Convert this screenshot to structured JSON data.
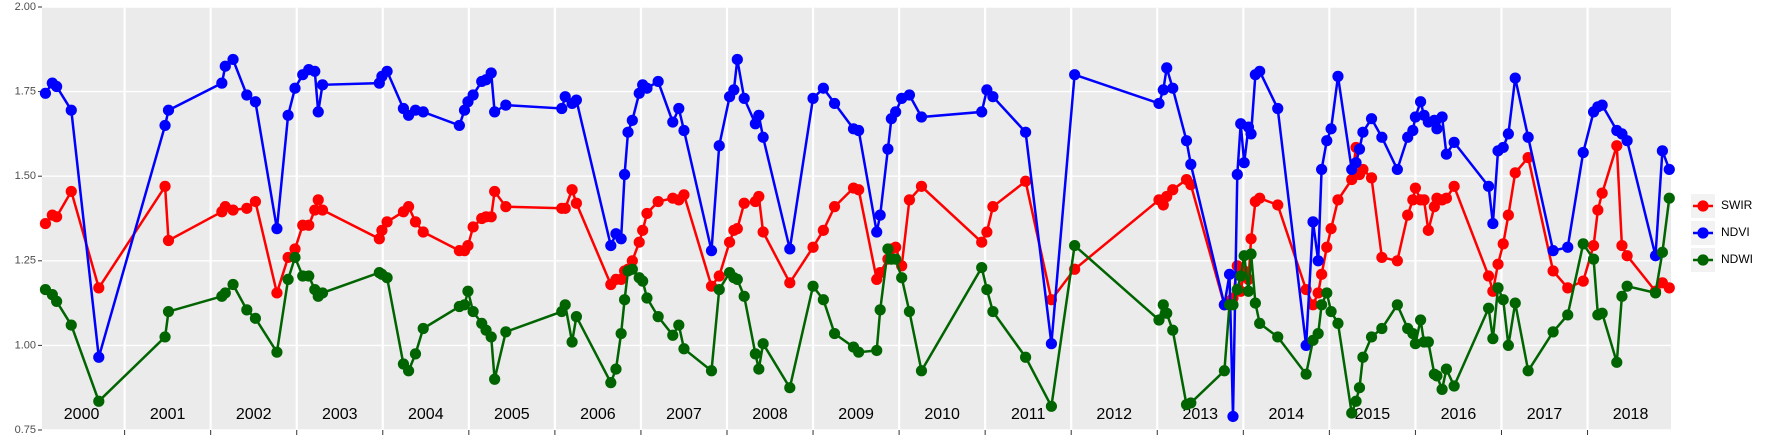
{
  "chart_data": {
    "type": "line",
    "x": [
      2000.08,
      2000.16,
      2000.21,
      2000.38,
      2000.7,
      2001.47,
      2001.51,
      2002.13,
      2002.17,
      2002.26,
      2002.42,
      2002.52,
      2002.77,
      2002.9,
      2002.98,
      2003.07,
      2003.14,
      2003.21,
      2003.25,
      2003.3,
      2003.96,
      2003.99,
      2004.05,
      2004.24,
      2004.3,
      2004.38,
      2004.47,
      2004.89,
      2004.95,
      2004.99,
      2005.05,
      2005.15,
      2005.2,
      2005.26,
      2005.3,
      2005.43,
      2006.08,
      2006.12,
      2006.2,
      2006.25,
      2006.65,
      2006.71,
      2006.77,
      2006.81,
      2006.85,
      2006.9,
      2006.98,
      2007.02,
      2007.07,
      2007.2,
      2007.37,
      2007.44,
      2007.5,
      2007.82,
      2007.91,
      2008.03,
      2008.08,
      2008.12,
      2008.2,
      2008.33,
      2008.37,
      2008.42,
      2008.73,
      2009.0,
      2009.12,
      2009.25,
      2009.47,
      2009.53,
      2009.74,
      2009.78,
      2009.87,
      2009.91,
      2009.96,
      2010.03,
      2010.12,
      2010.26,
      2010.96,
      2011.02,
      2011.09,
      2011.47,
      2011.77,
      2012.04,
      2013.02,
      2013.07,
      2013.11,
      2013.18,
      2013.34,
      2013.39,
      2013.78,
      2013.84,
      2013.88,
      2013.93,
      2013.97,
      2014.01,
      2014.06,
      2014.09,
      2014.14,
      2014.19,
      2014.4,
      2014.73,
      2014.81,
      2014.87,
      2014.91,
      2014.97,
      2015.02,
      2015.1,
      2015.26,
      2015.31,
      2015.35,
      2015.39,
      2015.49,
      2015.61,
      2015.79,
      2015.91,
      2015.97,
      2016.0,
      2016.06,
      2016.1,
      2016.15,
      2016.22,
      2016.25,
      2016.31,
      2016.36,
      2016.45,
      2016.85,
      2016.9,
      2016.96,
      2017.02,
      2017.08,
      2017.16,
      2017.31,
      2017.6,
      2017.77,
      2017.95,
      2018.07,
      2018.12,
      2018.17,
      2018.34,
      2018.4,
      2018.46,
      2018.79,
      2018.87,
      2018.95
    ],
    "series": [
      {
        "name": "SWIR",
        "color": "#ff0000",
        "values": [
          1.36,
          1.385,
          1.38,
          1.455,
          1.17,
          1.47,
          1.31,
          1.395,
          1.41,
          1.4,
          1.405,
          1.425,
          1.155,
          1.26,
          1.285,
          1.355,
          1.355,
          1.4,
          1.43,
          1.4,
          1.315,
          1.34,
          1.365,
          1.395,
          1.41,
          1.365,
          1.335,
          1.28,
          1.28,
          1.295,
          1.35,
          1.375,
          1.38,
          1.38,
          1.455,
          1.41,
          1.405,
          1.405,
          1.46,
          1.42,
          1.18,
          1.195,
          1.195,
          1.22,
          1.225,
          1.25,
          1.305,
          1.34,
          1.39,
          1.425,
          1.435,
          1.43,
          1.445,
          1.175,
          1.205,
          1.305,
          1.34,
          1.345,
          1.42,
          1.425,
          1.44,
          1.335,
          1.185,
          1.29,
          1.34,
          1.41,
          1.465,
          1.46,
          1.195,
          1.215,
          1.255,
          1.285,
          1.29,
          1.235,
          1.43,
          1.47,
          1.305,
          1.335,
          1.41,
          1.485,
          1.135,
          1.225,
          1.43,
          1.415,
          1.44,
          1.46,
          1.49,
          1.475,
          1.12,
          1.13,
          1.14,
          1.235,
          1.16,
          1.22,
          1.195,
          1.315,
          1.425,
          1.435,
          1.415,
          1.165,
          1.12,
          1.155,
          1.21,
          1.29,
          1.345,
          1.43,
          1.49,
          1.585,
          1.505,
          1.52,
          1.495,
          1.26,
          1.25,
          1.385,
          1.43,
          1.465,
          1.43,
          1.43,
          1.34,
          1.41,
          1.435,
          1.43,
          1.435,
          1.47,
          1.205,
          1.16,
          1.24,
          1.3,
          1.385,
          1.51,
          1.555,
          1.22,
          1.17,
          1.19,
          1.295,
          1.4,
          1.45,
          1.59,
          1.295,
          1.265,
          1.16,
          1.185,
          1.17
        ]
      },
      {
        "name": "NDVI",
        "color": "#0000ff",
        "values": [
          1.745,
          1.775,
          1.765,
          1.695,
          0.965,
          1.65,
          1.695,
          1.775,
          1.825,
          1.845,
          1.74,
          1.72,
          1.345,
          1.68,
          1.76,
          1.8,
          1.815,
          1.81,
          1.69,
          1.77,
          1.775,
          1.795,
          1.81,
          1.7,
          1.68,
          1.695,
          1.69,
          1.65,
          1.695,
          1.72,
          1.74,
          1.78,
          1.785,
          1.805,
          1.69,
          1.71,
          1.7,
          1.735,
          1.715,
          1.725,
          1.295,
          1.33,
          1.315,
          1.505,
          1.63,
          1.665,
          1.745,
          1.77,
          1.76,
          1.78,
          1.66,
          1.7,
          1.635,
          1.28,
          1.59,
          1.735,
          1.755,
          1.845,
          1.73,
          1.655,
          1.68,
          1.615,
          1.285,
          1.73,
          1.76,
          1.715,
          1.64,
          1.635,
          1.335,
          1.385,
          1.58,
          1.67,
          1.69,
          1.73,
          1.74,
          1.675,
          1.69,
          1.755,
          1.735,
          1.63,
          1.005,
          1.8,
          1.715,
          1.755,
          1.82,
          1.76,
          1.605,
          1.535,
          1.12,
          1.21,
          0.79,
          1.505,
          1.655,
          1.54,
          1.645,
          1.625,
          1.8,
          1.81,
          1.7,
          1.0,
          1.365,
          1.25,
          1.52,
          1.605,
          1.64,
          1.795,
          1.52,
          1.54,
          1.58,
          1.63,
          1.67,
          1.615,
          1.52,
          1.615,
          1.635,
          1.675,
          1.72,
          1.68,
          1.66,
          1.665,
          1.64,
          1.675,
          1.565,
          1.6,
          1.47,
          1.36,
          1.575,
          1.585,
          1.625,
          1.79,
          1.615,
          1.28,
          1.29,
          1.57,
          1.69,
          1.705,
          1.71,
          1.635,
          1.625,
          1.605,
          1.265,
          1.575,
          1.52
        ]
      },
      {
        "name": "NDWI",
        "color": "#006400",
        "values": [
          1.165,
          1.15,
          1.13,
          1.06,
          0.835,
          1.025,
          1.1,
          1.145,
          1.155,
          1.18,
          1.105,
          1.08,
          0.98,
          1.195,
          1.26,
          1.205,
          1.205,
          1.165,
          1.145,
          1.155,
          1.215,
          1.21,
          1.2,
          0.945,
          0.925,
          0.975,
          1.05,
          1.115,
          1.12,
          1.16,
          1.1,
          1.065,
          1.045,
          1.025,
          0.9,
          1.04,
          1.1,
          1.12,
          1.01,
          1.085,
          0.89,
          0.93,
          1.035,
          1.135,
          1.22,
          1.225,
          1.2,
          1.19,
          1.14,
          1.085,
          1.03,
          1.06,
          0.99,
          0.925,
          1.165,
          1.215,
          1.2,
          1.195,
          1.145,
          0.975,
          0.93,
          1.005,
          0.875,
          1.175,
          1.135,
          1.035,
          0.995,
          0.98,
          0.985,
          1.105,
          1.285,
          1.255,
          1.255,
          1.2,
          1.1,
          0.925,
          1.23,
          1.165,
          1.1,
          0.965,
          0.82,
          1.295,
          1.075,
          1.12,
          1.095,
          1.045,
          0.825,
          0.83,
          0.925,
          1.12,
          1.12,
          1.165,
          1.205,
          1.265,
          1.16,
          1.27,
          1.125,
          1.065,
          1.025,
          0.915,
          1.015,
          1.035,
          1.12,
          1.155,
          1.1,
          1.065,
          0.8,
          0.835,
          0.875,
          0.965,
          1.025,
          1.05,
          1.12,
          1.05,
          1.035,
          1.005,
          1.075,
          1.01,
          1.01,
          0.915,
          0.91,
          0.87,
          0.93,
          0.88,
          1.11,
          1.02,
          1.17,
          1.135,
          1.0,
          1.125,
          0.925,
          1.04,
          1.09,
          1.3,
          1.255,
          1.09,
          1.095,
          0.95,
          1.145,
          1.175,
          1.155,
          1.275,
          1.435
        ]
      }
    ],
    "xlim": [
      2000.04,
      2018.97
    ],
    "xticks": [
      2001,
      2002,
      2003,
      2004,
      2005,
      2006,
      2007,
      2008,
      2009,
      2010,
      2011,
      2012,
      2013,
      2014,
      2015,
      2016,
      2017,
      2018
    ],
    "year_labels": [
      2000,
      2001,
      2002,
      2003,
      2004,
      2005,
      2006,
      2007,
      2008,
      2009,
      2010,
      2011,
      2012,
      2013,
      2014,
      2015,
      2016,
      2017,
      2018
    ],
    "ylim": [
      0.75,
      2.0
    ],
    "yticks": [
      {
        "value": 0.75,
        "label": "0.75"
      },
      {
        "value": 1,
        "label": "1.00"
      },
      {
        "value": 1.25,
        "label": "1.25"
      },
      {
        "value": 1.5,
        "label": "1.50"
      },
      {
        "value": 1.75,
        "label": "1.75"
      },
      {
        "value": 2,
        "label": "2.00"
      }
    ],
    "grid": true,
    "legend": "right"
  }
}
